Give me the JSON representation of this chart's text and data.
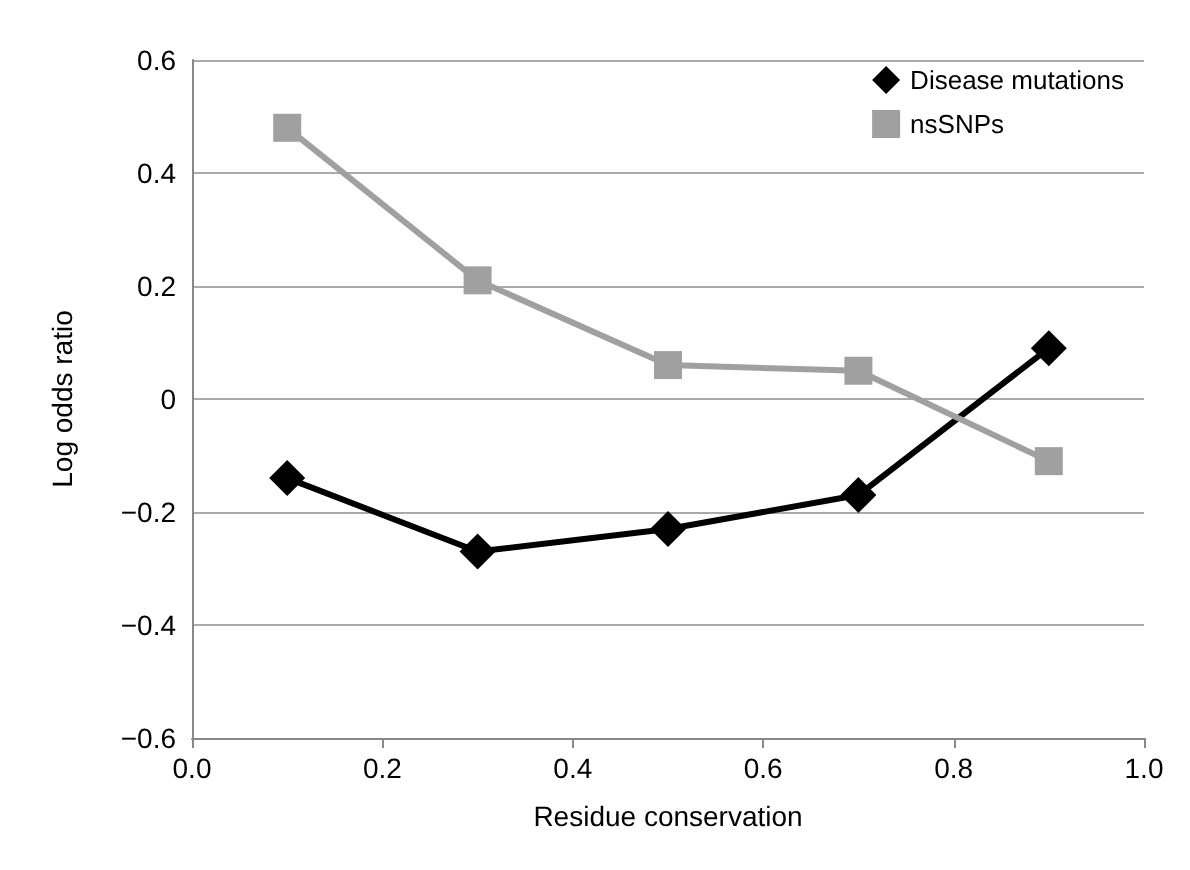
{
  "chart_data": {
    "type": "line",
    "xlabel": "Residue conservation",
    "ylabel": "Log odds ratio",
    "x": [
      0.1,
      0.3,
      0.5,
      0.7,
      0.9
    ],
    "series": [
      {
        "name": "Disease mutations",
        "color": "#000000",
        "marker": "diamond",
        "values": [
          -0.14,
          -0.27,
          -0.23,
          -0.17,
          0.09
        ]
      },
      {
        "name": "nsSNPs",
        "color": "#a0a0a0",
        "marker": "square",
        "values": [
          0.48,
          0.21,
          0.06,
          0.05,
          -0.11
        ]
      }
    ],
    "xlim": [
      0,
      1
    ],
    "xticks": [
      {
        "value": 0,
        "label": "0.0"
      },
      0.2,
      0.4,
      0.6,
      0.8,
      {
        "value": 1,
        "label": "1.0"
      }
    ],
    "ylim": [
      -0.6,
      0.6
    ],
    "yticks": [
      {
        "value": -0.6,
        "label": "−0.6"
      },
      {
        "value": -0.4,
        "label": "−0.4"
      },
      {
        "value": -0.2,
        "label": "−0.2"
      },
      0,
      0.2,
      0.4,
      0.6
    ],
    "grid": "y",
    "legend": "top right",
    "line_style": "solid"
  }
}
